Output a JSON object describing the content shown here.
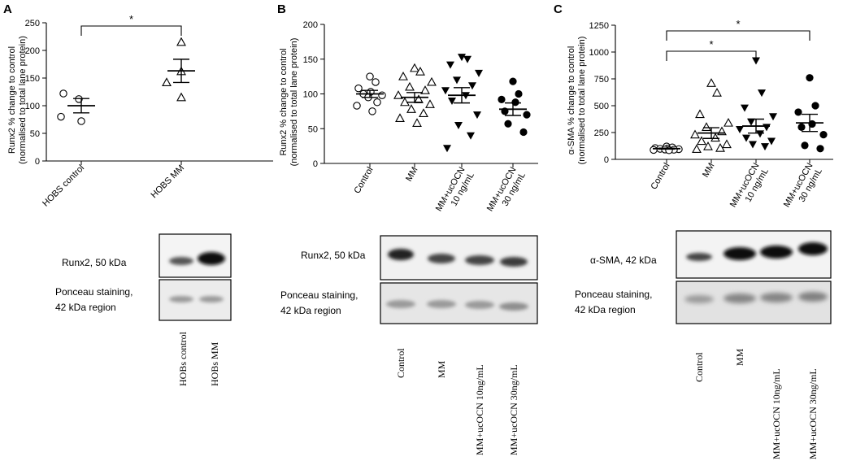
{
  "chart_data": [
    {
      "panel_letter": "A",
      "type": "scatter",
      "ylabel_line1": "Runx2 % change to control",
      "ylabel_line2": "(normalised to total lane protein)",
      "ylim": [
        0,
        250
      ],
      "yticks": [
        0,
        50,
        100,
        150,
        200,
        250
      ],
      "categories": [
        "HOBS control",
        "HOBS MM"
      ],
      "markers": [
        "circle-open",
        "triangle-open"
      ],
      "values": [
        [
          122,
          112,
          80,
          72
        ],
        [
          215,
          162,
          142,
          115
        ]
      ],
      "means": [
        100,
        163
      ],
      "errors": [
        13,
        21
      ],
      "significance": [
        {
          "from": 0,
          "to": 1,
          "label": "*"
        }
      ]
    },
    {
      "panel_letter": "B",
      "type": "scatter",
      "ylabel_line1": "Runx2 % change to control",
      "ylabel_line2": "(normalised to total lane protein)",
      "ylim": [
        0,
        200
      ],
      "yticks": [
        0,
        50,
        100,
        150,
        200
      ],
      "categories": [
        "Control",
        "MM",
        "MM+ucOCN|10 ng/mL",
        "MM+ucOCN|30 ng/mL"
      ],
      "markers": [
        "circle-open",
        "triangle-open",
        "triangle-down-filled",
        "circle-filled"
      ],
      "values": [
        [
          125,
          117,
          108,
          103,
          100,
          98,
          95,
          88,
          83,
          75
        ],
        [
          137,
          132,
          125,
          117,
          110,
          105,
          98,
          92,
          88,
          85,
          78,
          72,
          65,
          58
        ],
        [
          153,
          150,
          142,
          130,
          120,
          112,
          105,
          98,
          90,
          70,
          55,
          40,
          22
        ],
        [
          118,
          100,
          92,
          88,
          75,
          70,
          57,
          45
        ]
      ],
      "means": [
        100,
        95,
        98,
        78
      ],
      "errors": [
        5,
        7,
        11,
        9
      ],
      "significance": []
    },
    {
      "panel_letter": "C",
      "type": "scatter",
      "ylabel_line1": "α-SMA % change to control",
      "ylabel_line2": "(normalised to total lane protein)",
      "ylim": [
        0,
        1250
      ],
      "yticks": [
        0,
        250,
        500,
        750,
        1000,
        1250
      ],
      "categories": [
        "Control",
        "MM",
        "MM+ucOCN|10 ng/mL",
        "MM+ucOCN|30 ng/mL"
      ],
      "markers": [
        "circle-open",
        "triangle-open",
        "triangle-down-filled",
        "circle-filled"
      ],
      "values": [
        [
          120,
          112,
          105,
          100,
          98,
          95,
          92,
          90,
          88,
          85
        ],
        [
          710,
          620,
          420,
          340,
          300,
          260,
          230,
          200,
          170,
          140,
          120,
          105,
          95
        ],
        [
          920,
          620,
          480,
          400,
          350,
          300,
          280,
          240,
          200,
          170,
          140,
          120
        ],
        [
          760,
          500,
          440,
          330,
          300,
          230,
          130,
          100
        ]
      ],
      "means": [
        100,
        245,
        310,
        340
      ],
      "errors": [
        5,
        50,
        65,
        80
      ],
      "significance": [
        {
          "from": 0,
          "to": 2,
          "label": "*"
        },
        {
          "from": 0,
          "to": 3,
          "label": "*"
        }
      ]
    }
  ],
  "blots": {
    "A": {
      "band_label": "Runx2, 50 kDa",
      "stain_line1": "Ponceau staining,",
      "stain_line2": "42 kDa region",
      "lanes": [
        "HOBs control",
        "HOBs MM"
      ]
    },
    "B": {
      "band_label": "Runx2, 50 kDa",
      "stain_line1": "Ponceau staining,",
      "stain_line2": "42 kDa region",
      "lanes": [
        "Control",
        "MM",
        "MM+ucOCN 10ng/mL",
        "MM+ucOCN 30ng/mL"
      ]
    },
    "C": {
      "band_label": "α-SMA,  42 kDa",
      "stain_line1": "Ponceau staining,",
      "stain_line2": "42 kDa region",
      "lanes": [
        "Control",
        "MM",
        "MM+ucOCN 10ng/mL",
        "MM+ucOCN 30ng/mL"
      ]
    }
  }
}
